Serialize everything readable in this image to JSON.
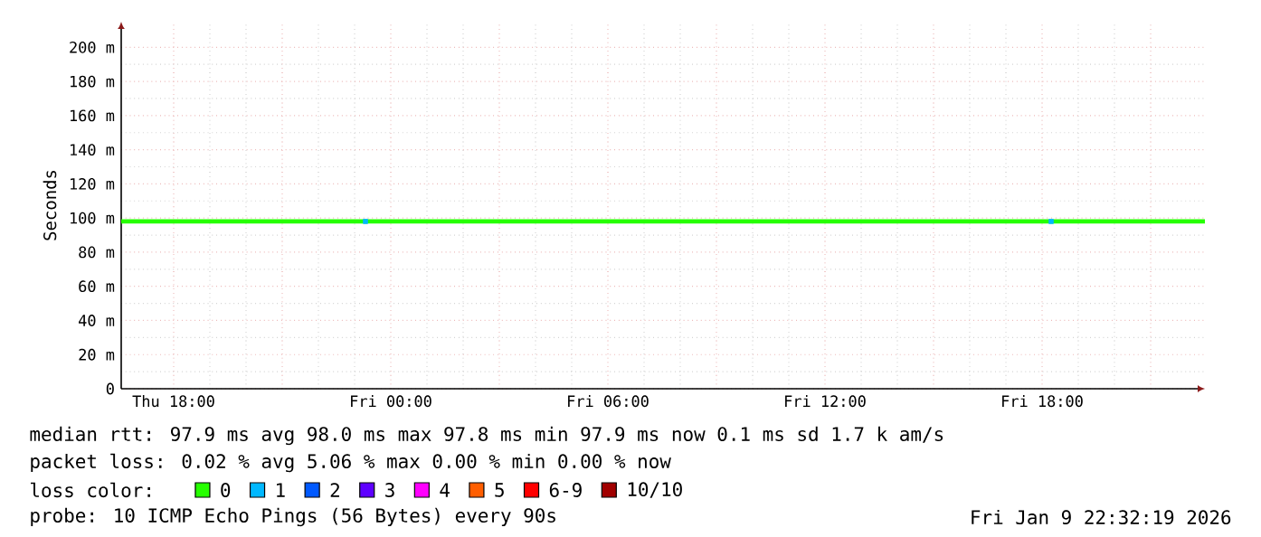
{
  "chart_data": {
    "type": "line",
    "ylabel": "Seconds",
    "legend_title": "loss color:",
    "legend": "bottom",
    "grid": true,
    "x": [
      "2026-01-08T16:33",
      "2026-01-09T22:30"
    ],
    "series": [
      {
        "name": "0",
        "color": "#26ff00",
        "values": [
          98,
          98
        ]
      },
      {
        "name": "1",
        "color": "#00b8ff",
        "type": "scatter",
        "marker": "square",
        "x": [
          "2026-01-08T23:18",
          "2026-01-09T18:15"
        ],
        "values": [
          98,
          98
        ]
      },
      {
        "name": "2",
        "color": "#0059ff",
        "values": [
          null,
          null
        ]
      },
      {
        "name": "3",
        "color": "#5e00ff",
        "values": [
          null,
          null
        ]
      },
      {
        "name": "4",
        "color": "#ff00fe",
        "values": [
          null,
          null
        ]
      },
      {
        "name": "5",
        "color": "#ff5e00",
        "values": [
          null,
          null
        ]
      },
      {
        "name": "6-9",
        "color": "#ff0000",
        "values": [
          null,
          null
        ]
      },
      {
        "name": "10/10",
        "color": "#a10000",
        "values": [
          null,
          null
        ]
      }
    ],
    "xlim": [
      "2026-01-08T16:33",
      "2026-01-09T22:30"
    ],
    "ylim": [
      0,
      215
    ],
    "xticks": [
      {
        "value": "2026-01-08T18:00",
        "label": "Thu 18:00"
      },
      {
        "value": "2026-01-08T21:00",
        "label": null
      },
      {
        "value": "2026-01-09T00:00",
        "label": "Fri 00:00"
      },
      {
        "value": "2026-01-09T03:00",
        "label": null
      },
      {
        "value": "2026-01-09T06:00",
        "label": "Fri 06:00"
      },
      {
        "value": "2026-01-09T09:00",
        "label": null
      },
      {
        "value": "2026-01-09T12:00",
        "label": "Fri 12:00"
      },
      {
        "value": "2026-01-09T15:00",
        "label": null
      },
      {
        "value": "2026-01-09T18:00",
        "label": "Fri 18:00"
      },
      {
        "value": "2026-01-09T21:00",
        "label": null
      }
    ],
    "yticks": [
      0,
      {
        "value": 20,
        "label": "20 m"
      },
      {
        "value": 40,
        "label": "40 m"
      },
      {
        "value": 60,
        "label": "60 m"
      },
      {
        "value": 80,
        "label": "80 m"
      },
      {
        "value": 100,
        "label": "100 m"
      },
      {
        "value": 120,
        "label": "120 m"
      },
      {
        "value": 140,
        "label": "140 m"
      },
      {
        "value": 160,
        "label": "160 m"
      },
      {
        "value": 180,
        "label": "180 m"
      },
      {
        "value": 200,
        "label": "200 m"
      }
    ],
    "annotations": [
      "median rtt:  97.9 ms avg  98.0 ms max  97.8 ms min  97.9 ms now  0.1 ms sd  1.7 k am/s",
      "packet loss: 0.02 % avg  5.06 % max  0.00 % min  0.00 % now",
      "probe:       10 ICMP Echo Pings (56 Bytes) every 90s",
      "Fri Jan  9 22:32:19 2026"
    ]
  }
}
